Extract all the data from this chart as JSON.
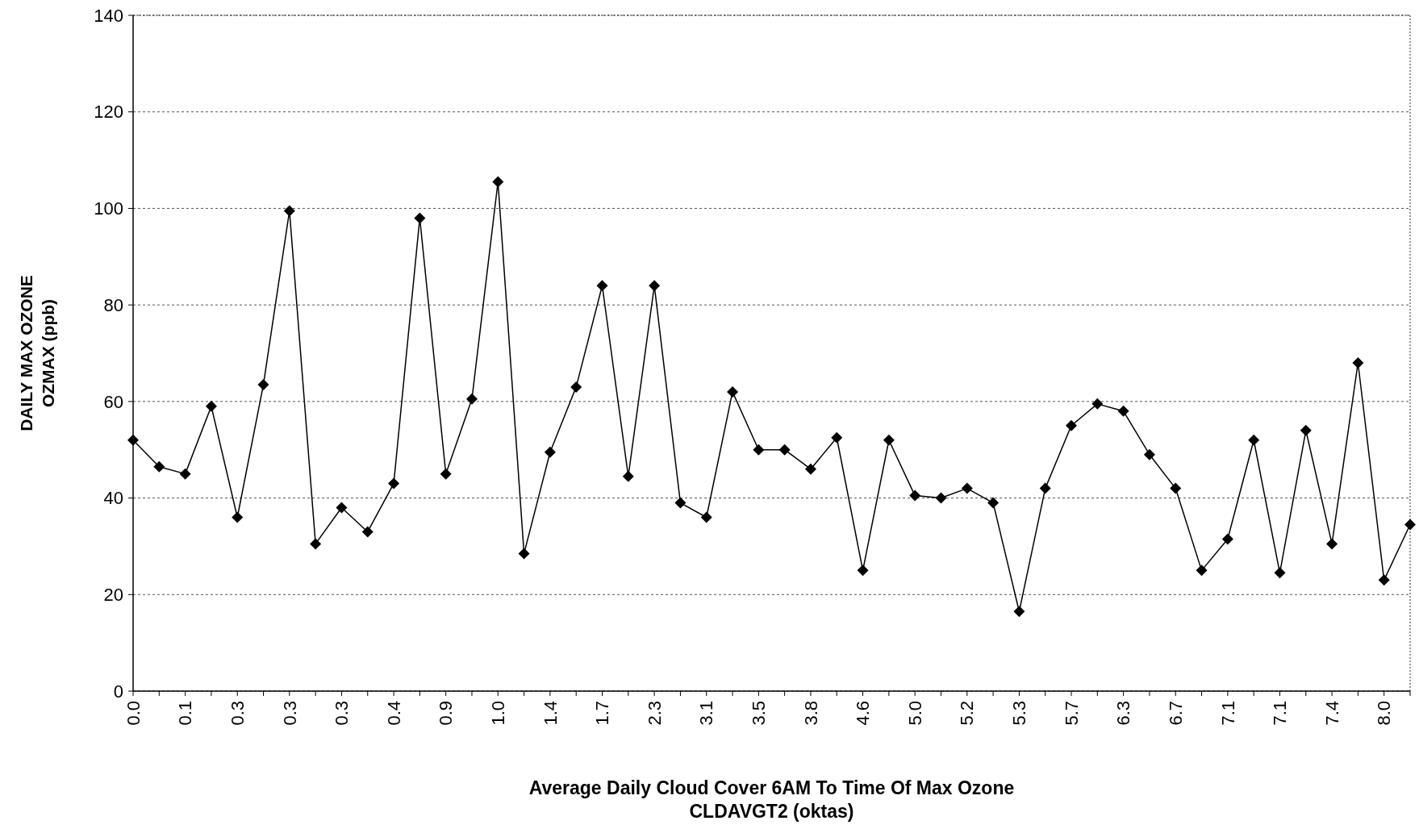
{
  "chart_data": {
    "type": "line",
    "xlabel": "Average Daily Cloud Cover 6AM To Time Of Max Ozone\nCLDAVGT2  (oktas)",
    "ylabel": "DAILY MAX OZONE\nOZMAX (ppb)",
    "categories": [
      "0.0",
      null,
      "0.1",
      null,
      "0.3",
      null,
      "0.3",
      null,
      "0.3",
      null,
      "0.4",
      null,
      "0.9",
      null,
      "1.0",
      null,
      "1.4",
      null,
      "1.7",
      null,
      "2.3",
      null,
      "3.1",
      null,
      "3.5",
      null,
      "3.8",
      null,
      "4.6",
      null,
      "5.0",
      null,
      "5.2",
      null,
      "5.3",
      null,
      "5.7",
      null,
      "6.3",
      null,
      "6.7",
      null,
      "7.1",
      null,
      "7.1",
      null,
      "7.4",
      null,
      "8.0",
      null
    ],
    "series": [
      {
        "color": "#000000",
        "values": [
          52,
          46.5,
          45,
          59,
          36,
          63.5,
          99.5,
          30.5,
          38,
          33,
          43,
          98,
          45,
          60.5,
          105.5,
          28.5,
          49.5,
          63,
          84,
          44.5,
          84,
          39,
          36,
          62,
          50,
          50,
          46,
          52.5,
          25,
          52,
          40.5,
          40,
          42,
          39,
          16.5,
          42,
          55,
          59.5,
          58,
          49,
          42,
          25,
          31.5,
          52,
          24.5,
          54,
          30.5,
          68,
          23,
          34.5
        ]
      }
    ],
    "ylim": [
      0,
      140
    ],
    "yticks": [
      0,
      20,
      40,
      60,
      80,
      100,
      120,
      140
    ],
    "grid": "y",
    "marker": "diamond",
    "line_style": "solid"
  }
}
